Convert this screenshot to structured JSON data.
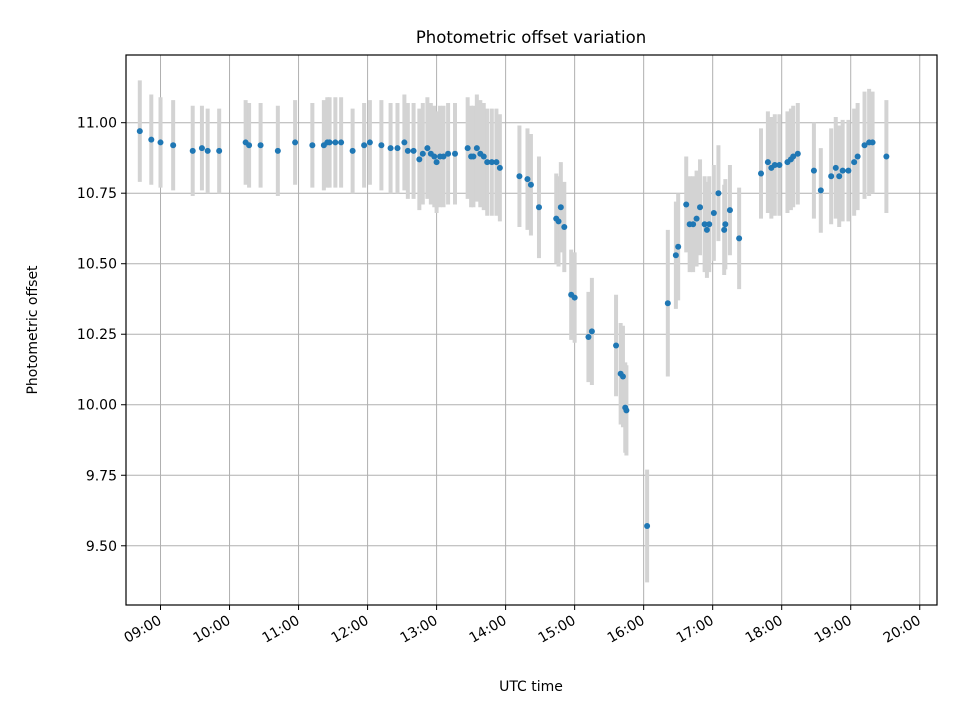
{
  "chart_data": {
    "type": "scatter",
    "title": "Photometric offset variation",
    "xlabel": "UTC time",
    "ylabel": "Photometric offset",
    "x_axis_kind": "time",
    "xlim": [
      "08:30",
      "20:15"
    ],
    "ylim": [
      9.29,
      11.24
    ],
    "x_ticks": [
      "09:00",
      "10:00",
      "11:00",
      "12:00",
      "13:00",
      "14:00",
      "15:00",
      "16:00",
      "17:00",
      "18:00",
      "19:00",
      "20:00"
    ],
    "y_ticks": [
      "9.50",
      "9.75",
      "10.00",
      "10.25",
      "10.50",
      "10.75",
      "11.00"
    ],
    "grid": true,
    "colors": {
      "points": "#1f77b4",
      "errorbars": "#d3d3d3",
      "grid": "#b0b0b0"
    },
    "series": [
      {
        "points": [
          [
            "08:42",
            10.97,
            0.18
          ],
          [
            "08:52",
            10.94,
            0.16
          ],
          [
            "09:00",
            10.93,
            0.16
          ],
          [
            "09:11",
            10.92,
            0.16
          ],
          [
            "09:28",
            10.9,
            0.16
          ],
          [
            "09:36",
            10.91,
            0.15
          ],
          [
            "09:41",
            10.9,
            0.15
          ],
          [
            "09:51",
            10.9,
            0.15
          ],
          [
            "10:14",
            10.93,
            0.15
          ],
          [
            "10:17",
            10.92,
            0.15
          ],
          [
            "10:27",
            10.92,
            0.15
          ],
          [
            "10:42",
            10.9,
            0.16
          ],
          [
            "10:57",
            10.93,
            0.15
          ],
          [
            "11:12",
            10.92,
            0.15
          ],
          [
            "11:22",
            10.92,
            0.16
          ],
          [
            "11:25",
            10.93,
            0.16
          ],
          [
            "11:27",
            10.93,
            0.16
          ],
          [
            "11:32",
            10.93,
            0.16
          ],
          [
            "11:37",
            10.93,
            0.16
          ],
          [
            "11:47",
            10.9,
            0.15
          ],
          [
            "11:57",
            10.92,
            0.15
          ],
          [
            "12:02",
            10.93,
            0.15
          ],
          [
            "12:12",
            10.92,
            0.16
          ],
          [
            "12:20",
            10.91,
            0.16
          ],
          [
            "12:26",
            10.91,
            0.16
          ],
          [
            "12:32",
            10.93,
            0.17
          ],
          [
            "12:35",
            10.9,
            0.17
          ],
          [
            "12:40",
            10.9,
            0.17
          ],
          [
            "12:45",
            10.87,
            0.18
          ],
          [
            "12:48",
            10.89,
            0.18
          ],
          [
            "12:52",
            10.91,
            0.18
          ],
          [
            "12:55",
            10.89,
            0.18
          ],
          [
            "12:58",
            10.88,
            0.18
          ],
          [
            "13:00",
            10.86,
            0.18
          ],
          [
            "13:03",
            10.88,
            0.18
          ],
          [
            "13:06",
            10.88,
            0.18
          ],
          [
            "13:10",
            10.89,
            0.18
          ],
          [
            "13:16",
            10.89,
            0.18
          ],
          [
            "13:27",
            10.91,
            0.18
          ],
          [
            "13:30",
            10.88,
            0.18
          ],
          [
            "13:32",
            10.88,
            0.18
          ],
          [
            "13:35",
            10.91,
            0.19
          ],
          [
            "13:38",
            10.89,
            0.19
          ],
          [
            "13:41",
            10.88,
            0.19
          ],
          [
            "13:44",
            10.86,
            0.19
          ],
          [
            "13:48",
            10.86,
            0.19
          ],
          [
            "13:52",
            10.86,
            0.19
          ],
          [
            "13:55",
            10.84,
            0.19
          ],
          [
            "14:12",
            10.81,
            0.18
          ],
          [
            "14:19",
            10.8,
            0.18
          ],
          [
            "14:22",
            10.78,
            0.18
          ],
          [
            "14:29",
            10.7,
            0.18
          ],
          [
            "14:44",
            10.66,
            0.16
          ],
          [
            "14:46",
            10.65,
            0.16
          ],
          [
            "14:48",
            10.7,
            0.16
          ],
          [
            "14:51",
            10.63,
            0.16
          ],
          [
            "14:57",
            10.39,
            0.16
          ],
          [
            "15:00",
            10.38,
            0.16
          ],
          [
            "15:12",
            10.24,
            0.16
          ],
          [
            "15:15",
            10.26,
            0.19
          ],
          [
            "15:36",
            10.21,
            0.18
          ],
          [
            "15:40",
            10.11,
            0.18
          ],
          [
            "15:42",
            10.1,
            0.18
          ],
          [
            "15:44",
            9.99,
            0.16
          ],
          [
            "15:45",
            9.98,
            0.16
          ],
          [
            "16:03",
            9.57,
            0.2
          ],
          [
            "16:21",
            10.36,
            0.26
          ],
          [
            "16:28",
            10.53,
            0.19
          ],
          [
            "16:30",
            10.56,
            0.19
          ],
          [
            "16:37",
            10.71,
            0.17
          ],
          [
            "16:40",
            10.64,
            0.17
          ],
          [
            "16:43",
            10.64,
            0.17
          ],
          [
            "16:46",
            10.66,
            0.17
          ],
          [
            "16:49",
            10.7,
            0.17
          ],
          [
            "16:53",
            10.64,
            0.17
          ],
          [
            "16:55",
            10.62,
            0.17
          ],
          [
            "16:57",
            10.64,
            0.17
          ],
          [
            "17:01",
            10.68,
            0.17
          ],
          [
            "17:05",
            10.75,
            0.17
          ],
          [
            "17:10",
            10.62,
            0.16
          ],
          [
            "17:11",
            10.64,
            0.16
          ],
          [
            "17:15",
            10.69,
            0.16
          ],
          [
            "17:23",
            10.59,
            0.18
          ],
          [
            "17:42",
            10.82,
            0.16
          ],
          [
            "17:48",
            10.86,
            0.18
          ],
          [
            "17:51",
            10.84,
            0.18
          ],
          [
            "17:54",
            10.85,
            0.18
          ],
          [
            "17:58",
            10.85,
            0.18
          ],
          [
            "18:05",
            10.86,
            0.18
          ],
          [
            "18:08",
            10.87,
            0.18
          ],
          [
            "18:10",
            10.88,
            0.18
          ],
          [
            "18:14",
            10.89,
            0.18
          ],
          [
            "18:28",
            10.83,
            0.17
          ],
          [
            "18:34",
            10.76,
            0.15
          ],
          [
            "18:43",
            10.81,
            0.17
          ],
          [
            "18:47",
            10.84,
            0.18
          ],
          [
            "18:50",
            10.81,
            0.18
          ],
          [
            "18:53",
            10.83,
            0.18
          ],
          [
            "18:58",
            10.83,
            0.18
          ],
          [
            "19:03",
            10.86,
            0.19
          ],
          [
            "19:06",
            10.88,
            0.19
          ],
          [
            "19:12",
            10.92,
            0.19
          ],
          [
            "19:16",
            10.93,
            0.19
          ],
          [
            "19:19",
            10.93,
            0.18
          ],
          [
            "19:31",
            10.88,
            0.2
          ]
        ]
      }
    ]
  }
}
